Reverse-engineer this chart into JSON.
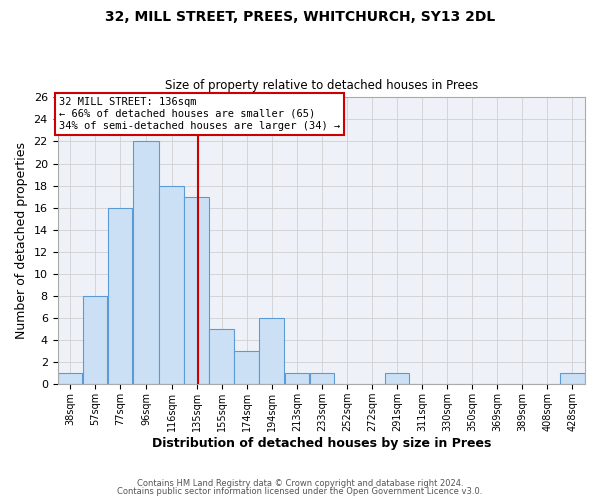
{
  "title": "32, MILL STREET, PREES, WHITCHURCH, SY13 2DL",
  "subtitle": "Size of property relative to detached houses in Prees",
  "xlabel": "Distribution of detached houses by size in Prees",
  "ylabel": "Number of detached properties",
  "bin_edges": [
    28.5,
    47.5,
    66.5,
    85.5,
    105.5,
    124.5,
    143.5,
    162.5,
    181.5,
    200.5,
    219.5,
    238.5,
    257.5,
    276.5,
    295.5,
    314.5,
    333.5,
    352.5,
    371.5,
    390.5,
    409.5,
    428.5
  ],
  "bin_labels": [
    "38sqm",
    "57sqm",
    "77sqm",
    "96sqm",
    "116sqm",
    "135sqm",
    "155sqm",
    "174sqm",
    "194sqm",
    "213sqm",
    "233sqm",
    "252sqm",
    "272sqm",
    "291sqm",
    "311sqm",
    "330sqm",
    "350sqm",
    "369sqm",
    "389sqm",
    "408sqm",
    "428sqm"
  ],
  "counts": [
    1,
    8,
    16,
    22,
    18,
    17,
    5,
    3,
    6,
    1,
    1,
    0,
    0,
    1,
    0,
    0,
    0,
    0,
    0,
    0,
    1
  ],
  "bar_facecolor": "#cce0f5",
  "bar_edgecolor": "#5b9bd5",
  "property_line_x": 135,
  "property_line_color": "#cc0000",
  "ylim": [
    0,
    26
  ],
  "yticks": [
    0,
    2,
    4,
    6,
    8,
    10,
    12,
    14,
    16,
    18,
    20,
    22,
    24,
    26
  ],
  "annotation_line1": "32 MILL STREET: 136sqm",
  "annotation_line2": "← 66% of detached houses are smaller (65)",
  "annotation_line3": "34% of semi-detached houses are larger (34) →",
  "grid_color": "#d0d0d0",
  "background_color": "#eef2f8",
  "footer_line1": "Contains HM Land Registry data © Crown copyright and database right 2024.",
  "footer_line2": "Contains public sector information licensed under the Open Government Licence v3.0."
}
